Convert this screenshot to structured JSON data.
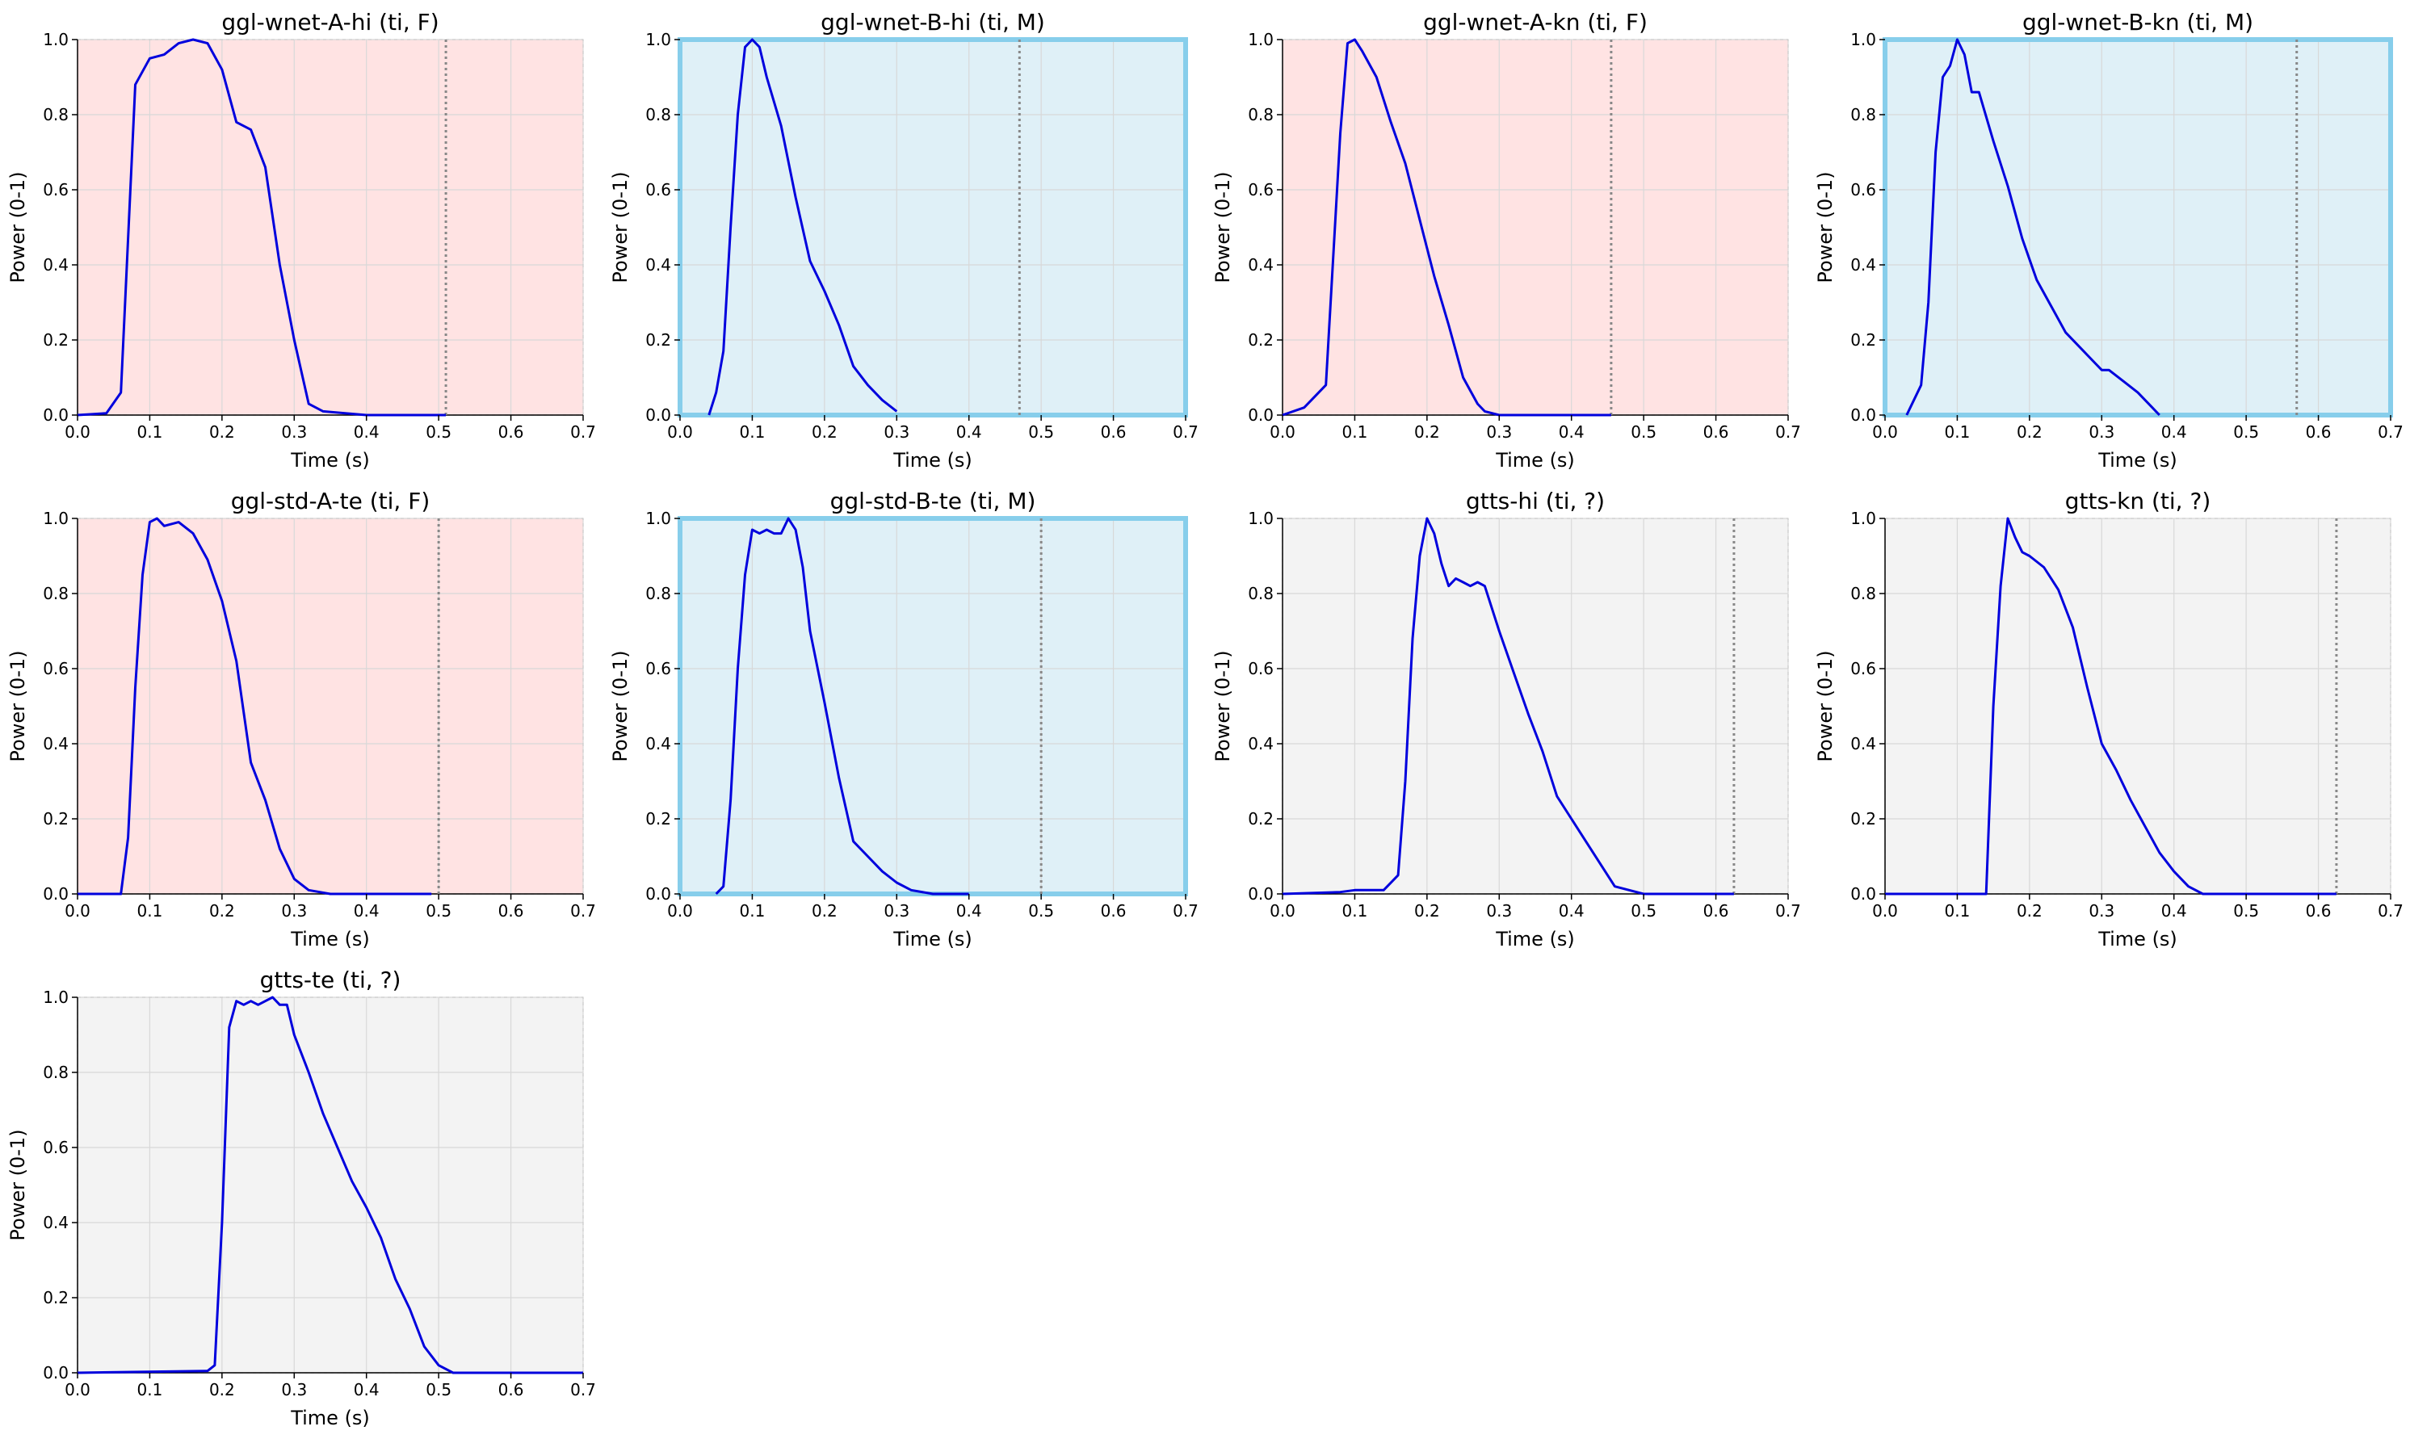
{
  "chart_data": [
    {
      "type": "line",
      "title": "ggl-wnet-A-hi (ti, F)",
      "group": "F",
      "xlabel": "Time (s)",
      "ylabel": "Power (0-1)",
      "xlim": [
        0,
        0.7
      ],
      "ylim": [
        0,
        1
      ],
      "grid": true,
      "marker_x": 0.51,
      "x": [
        0,
        0.04,
        0.06,
        0.08,
        0.1,
        0.12,
        0.14,
        0.16,
        0.18,
        0.2,
        0.22,
        0.24,
        0.26,
        0.28,
        0.3,
        0.32,
        0.34,
        0.4,
        0.51
      ],
      "values": [
        0,
        0.005,
        0.06,
        0.88,
        0.95,
        0.96,
        0.99,
        1.0,
        0.99,
        0.92,
        0.78,
        0.76,
        0.66,
        0.4,
        0.2,
        0.03,
        0.01,
        0.0,
        0.0
      ]
    },
    {
      "type": "line",
      "title": "ggl-wnet-B-hi (ti, M)",
      "group": "M",
      "xlabel": "Time (s)",
      "ylabel": "Power (0-1)",
      "xlim": [
        0,
        0.7
      ],
      "ylim": [
        0,
        1
      ],
      "grid": true,
      "marker_x": 0.47,
      "x": [
        0.04,
        0.05,
        0.06,
        0.07,
        0.08,
        0.09,
        0.1,
        0.11,
        0.12,
        0.14,
        0.16,
        0.18,
        0.2,
        0.22,
        0.24,
        0.26,
        0.28,
        0.3
      ],
      "values": [
        0.0,
        0.06,
        0.17,
        0.5,
        0.8,
        0.98,
        1.0,
        0.98,
        0.9,
        0.77,
        0.58,
        0.41,
        0.33,
        0.24,
        0.13,
        0.08,
        0.04,
        0.01
      ]
    },
    {
      "type": "line",
      "title": "ggl-wnet-A-kn (ti, F)",
      "group": "F",
      "xlabel": "Time (s)",
      "ylabel": "Power (0-1)",
      "xlim": [
        0,
        0.7
      ],
      "ylim": [
        0,
        1
      ],
      "grid": true,
      "marker_x": 0.455,
      "x": [
        0,
        0.03,
        0.06,
        0.08,
        0.09,
        0.1,
        0.11,
        0.13,
        0.15,
        0.17,
        0.19,
        0.21,
        0.23,
        0.25,
        0.27,
        0.28,
        0.3,
        0.455
      ],
      "values": [
        0,
        0.02,
        0.08,
        0.75,
        0.99,
        1.0,
        0.97,
        0.9,
        0.78,
        0.67,
        0.52,
        0.37,
        0.24,
        0.1,
        0.03,
        0.01,
        0.0,
        0.0
      ]
    },
    {
      "type": "line",
      "title": "ggl-wnet-B-kn (ti, M)",
      "group": "M",
      "xlabel": "Time (s)",
      "ylabel": "Power (0-1)",
      "xlim": [
        0,
        0.7
      ],
      "ylim": [
        0,
        1
      ],
      "grid": true,
      "marker_x": 0.57,
      "x": [
        0.03,
        0.05,
        0.06,
        0.07,
        0.08,
        0.09,
        0.1,
        0.11,
        0.12,
        0.13,
        0.15,
        0.17,
        0.19,
        0.21,
        0.23,
        0.25,
        0.27,
        0.29,
        0.3,
        0.31,
        0.33,
        0.35,
        0.37,
        0.38
      ],
      "values": [
        0.0,
        0.08,
        0.3,
        0.7,
        0.9,
        0.93,
        1.0,
        0.96,
        0.86,
        0.86,
        0.73,
        0.61,
        0.47,
        0.36,
        0.29,
        0.22,
        0.18,
        0.14,
        0.12,
        0.12,
        0.09,
        0.06,
        0.02,
        0.0
      ]
    },
    {
      "type": "line",
      "title": "ggl-std-A-te (ti, F)",
      "group": "F",
      "xlabel": "Time (s)",
      "ylabel": "Power (0-1)",
      "xlim": [
        0,
        0.7
      ],
      "ylim": [
        0,
        1
      ],
      "grid": true,
      "marker_x": 0.5,
      "x": [
        0,
        0.06,
        0.07,
        0.08,
        0.09,
        0.1,
        0.11,
        0.12,
        0.14,
        0.16,
        0.18,
        0.2,
        0.22,
        0.24,
        0.26,
        0.28,
        0.3,
        0.32,
        0.35,
        0.4,
        0.49
      ],
      "values": [
        0,
        0.0,
        0.15,
        0.55,
        0.85,
        0.99,
        1.0,
        0.98,
        0.99,
        0.96,
        0.89,
        0.78,
        0.62,
        0.35,
        0.25,
        0.12,
        0.04,
        0.01,
        0.0,
        0.0,
        0.0
      ]
    },
    {
      "type": "line",
      "title": "ggl-std-B-te (ti, M)",
      "group": "M",
      "xlabel": "Time (s)",
      "ylabel": "Power (0-1)",
      "xlim": [
        0,
        0.7
      ],
      "ylim": [
        0,
        1
      ],
      "grid": true,
      "marker_x": 0.5,
      "x": [
        0.05,
        0.06,
        0.07,
        0.08,
        0.09,
        0.1,
        0.11,
        0.12,
        0.13,
        0.14,
        0.15,
        0.16,
        0.17,
        0.18,
        0.2,
        0.22,
        0.24,
        0.26,
        0.28,
        0.3,
        0.32,
        0.35,
        0.4
      ],
      "values": [
        0.0,
        0.02,
        0.25,
        0.6,
        0.85,
        0.97,
        0.96,
        0.97,
        0.96,
        0.96,
        1.0,
        0.97,
        0.87,
        0.7,
        0.51,
        0.31,
        0.14,
        0.1,
        0.06,
        0.03,
        0.01,
        0.0,
        0.0
      ]
    },
    {
      "type": "line",
      "title": "gtts-hi (ti, ?)",
      "group": "?",
      "xlabel": "Time (s)",
      "ylabel": "Power (0-1)",
      "xlim": [
        0,
        0.7
      ],
      "ylim": [
        0,
        1
      ],
      "grid": true,
      "marker_x": 0.625,
      "x": [
        0,
        0.08,
        0.1,
        0.12,
        0.14,
        0.16,
        0.17,
        0.18,
        0.19,
        0.2,
        0.21,
        0.22,
        0.23,
        0.24,
        0.25,
        0.26,
        0.27,
        0.28,
        0.3,
        0.32,
        0.34,
        0.36,
        0.38,
        0.4,
        0.42,
        0.44,
        0.46,
        0.5,
        0.625
      ],
      "values": [
        0,
        0.005,
        0.01,
        0.01,
        0.01,
        0.05,
        0.3,
        0.68,
        0.9,
        1.0,
        0.96,
        0.88,
        0.82,
        0.84,
        0.83,
        0.82,
        0.83,
        0.82,
        0.7,
        0.59,
        0.48,
        0.38,
        0.26,
        0.2,
        0.14,
        0.08,
        0.02,
        0.0,
        0.0
      ]
    },
    {
      "type": "line",
      "title": "gtts-kn (ti, ?)",
      "group": "?",
      "xlabel": "Time (s)",
      "ylabel": "Power (0-1)",
      "xlim": [
        0,
        0.7
      ],
      "ylim": [
        0,
        1
      ],
      "grid": true,
      "marker_x": 0.625,
      "x": [
        0,
        0.14,
        0.15,
        0.16,
        0.17,
        0.18,
        0.19,
        0.2,
        0.22,
        0.24,
        0.26,
        0.28,
        0.3,
        0.32,
        0.34,
        0.36,
        0.38,
        0.4,
        0.42,
        0.44,
        0.5,
        0.625
      ],
      "values": [
        0,
        0.0,
        0.5,
        0.82,
        1.0,
        0.95,
        0.91,
        0.9,
        0.87,
        0.81,
        0.71,
        0.55,
        0.4,
        0.33,
        0.25,
        0.18,
        0.11,
        0.06,
        0.02,
        0.0,
        0.0,
        0.0
      ]
    },
    {
      "type": "line",
      "title": "gtts-te (ti, ?)",
      "group": "?",
      "xlabel": "Time (s)",
      "ylabel": "Power (0-1)",
      "xlim": [
        0,
        0.7
      ],
      "ylim": [
        0,
        1
      ],
      "grid": true,
      "marker_x": null,
      "x": [
        0,
        0.18,
        0.19,
        0.2,
        0.21,
        0.22,
        0.23,
        0.24,
        0.25,
        0.26,
        0.27,
        0.28,
        0.29,
        0.3,
        0.32,
        0.34,
        0.36,
        0.38,
        0.4,
        0.42,
        0.44,
        0.46,
        0.48,
        0.5,
        0.52,
        0.55,
        0.7
      ],
      "values": [
        0,
        0.005,
        0.02,
        0.4,
        0.92,
        0.99,
        0.98,
        0.99,
        0.98,
        0.99,
        1.0,
        0.98,
        0.98,
        0.9,
        0.8,
        0.69,
        0.6,
        0.51,
        0.44,
        0.36,
        0.25,
        0.17,
        0.07,
        0.02,
        0.0,
        0.0,
        0.0
      ]
    }
  ],
  "colors": {
    "line": "#0000dd",
    "bg_F": "#ffe3e3",
    "bg_M": "#dff0f7",
    "bg_unknown": "#f3f3f3",
    "border_M": "#87ceeb",
    "grid": "#d8d8d8",
    "marker": "#888888"
  }
}
